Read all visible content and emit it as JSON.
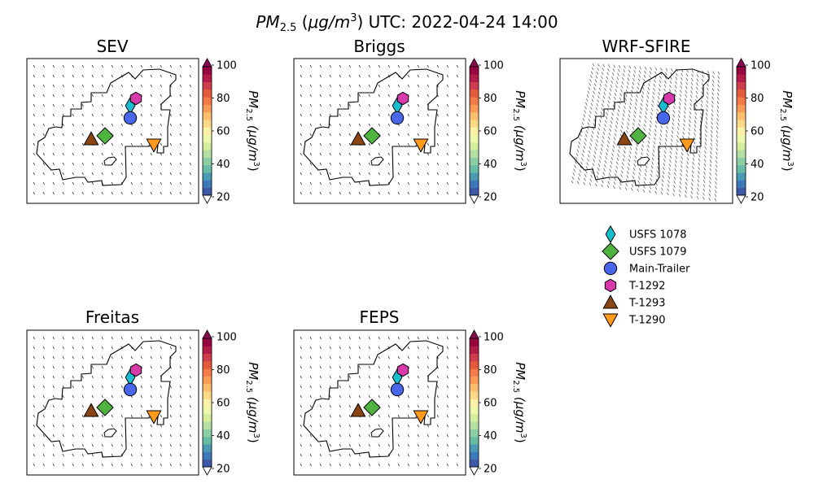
{
  "figure": {
    "title_var": "PM",
    "title_sub": "2.5",
    "title_unit_open": " (",
    "title_mu": "μg/m",
    "title_exp": "3",
    "title_unit_close": ")",
    "title_suffix": " UTC: 2022-04-24 14:00"
  },
  "colorbar": {
    "ticks": [
      "20",
      "40",
      "60",
      "80",
      "100"
    ],
    "tick_values": [
      20,
      40,
      60,
      80,
      100
    ],
    "range": [
      20,
      100
    ],
    "label_var": "PM",
    "label_sub": "2.5",
    "label_unit": " (μg/m",
    "label_exp": "3",
    "label_close": ")",
    "colors": [
      "#3d58a7",
      "#3d79b8",
      "#4a9ab4",
      "#67bca5",
      "#8ccfa4",
      "#b3e0a2",
      "#d4ed9b",
      "#eef8aa",
      "#fdf1a7",
      "#fdd985",
      "#fdbe6e",
      "#fa9b58",
      "#f47a4a",
      "#e45c3b",
      "#cf3c4c",
      "#b21c46",
      "#96053f"
    ],
    "under_color": "#ffffff",
    "over_color": "#8c0a4f"
  },
  "panels": [
    {
      "title": "SEV",
      "wind": "sparse"
    },
    {
      "title": "Briggs",
      "wind": "sparse"
    },
    {
      "title": "WRF-SFIRE",
      "wind": "dense"
    },
    {
      "title": "Freitas",
      "wind": "sparse"
    },
    {
      "title": "FEPS",
      "wind": "sparse"
    }
  ],
  "stations": [
    {
      "name": "USFS 1078",
      "marker": "thin-diamond",
      "color": "#17becf"
    },
    {
      "name": "USFS 1079",
      "marker": "diamond",
      "color": "#4fb33f"
    },
    {
      "name": "Main-Trailer",
      "marker": "circle",
      "color": "#4767e8"
    },
    {
      "name": "T-1292",
      "marker": "hexagon",
      "color": "#d63aab"
    },
    {
      "name": "T-1293",
      "marker": "triangle-up",
      "color": "#8b4513"
    },
    {
      "name": "T-1290",
      "marker": "triangle-down",
      "color": "#ff9a1a"
    }
  ]
}
